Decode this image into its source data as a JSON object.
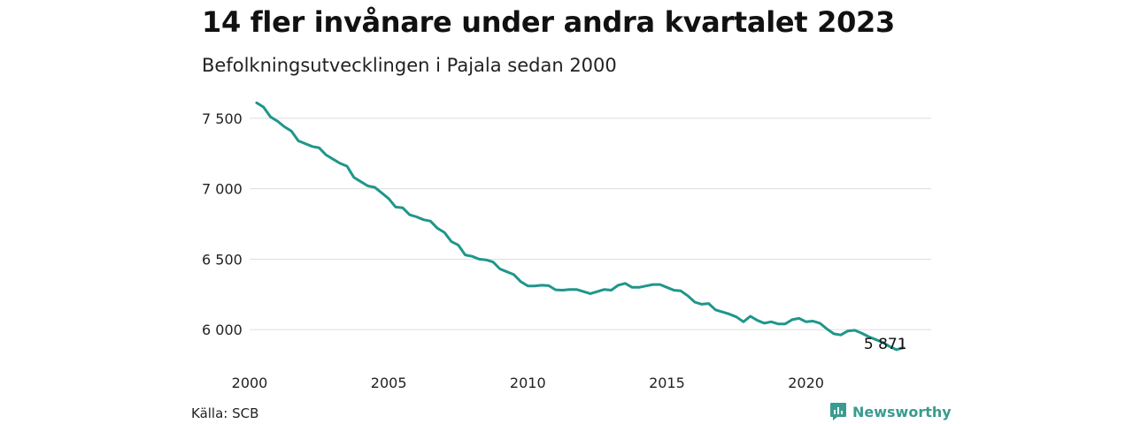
{
  "header": {
    "title": "14 fler invånare under andra kvartalet 2023",
    "subtitle": "Befolkningsutvecklingen i Pajala sedan 2000"
  },
  "footer": {
    "source": "Källa: SCB",
    "brand": "Newsworthy",
    "brand_color": "#3a9b90"
  },
  "chart_data": {
    "type": "line",
    "title": "14 fler invånare under andra kvartalet 2023",
    "subtitle": "Befolkningsutvecklingen i Pajala sedan 2000",
    "xlabel": "",
    "ylabel": "",
    "xlim": [
      2000,
      2024.5
    ],
    "ylim": [
      5800,
      7650
    ],
    "x_ticks": [
      2000,
      2005,
      2010,
      2015,
      2020
    ],
    "x_tick_labels": [
      "2000",
      "2005",
      "2010",
      "2015",
      "2020"
    ],
    "y_ticks": [
      6000,
      6500,
      7000,
      7500
    ],
    "y_tick_labels": [
      "6 000",
      "6 500",
      "7 000",
      "7 500"
    ],
    "grid": "horizontal",
    "line_color": "#1f968b",
    "annotation": {
      "x": 2023.5,
      "y": 5871,
      "label": "5 871"
    },
    "series": [
      {
        "x": [
          2000.25,
          2000.5,
          2000.75,
          2001.0,
          2001.25,
          2001.5,
          2001.75,
          2002.0,
          2002.25,
          2002.5,
          2002.75,
          2003.0,
          2003.25,
          2003.5,
          2003.75,
          2004.0,
          2004.25,
          2004.5,
          2004.75,
          2005.0,
          2005.25,
          2005.5,
          2005.75,
          2006.0,
          2006.25,
          2006.5,
          2006.75,
          2007.0,
          2007.25,
          2007.5,
          2007.75,
          2008.0,
          2008.25,
          2008.5,
          2008.75,
          2009.0,
          2009.25,
          2009.5,
          2009.75,
          2010.0,
          2010.25,
          2010.5,
          2010.75,
          2011.0,
          2011.25,
          2011.5,
          2011.75,
          2012.0,
          2012.25,
          2012.5,
          2012.75,
          2013.0,
          2013.25,
          2013.5,
          2013.75,
          2014.0,
          2014.25,
          2014.5,
          2014.75,
          2015.0,
          2015.25,
          2015.5,
          2015.75,
          2016.0,
          2016.25,
          2016.5,
          2016.75,
          2017.0,
          2017.25,
          2017.5,
          2017.75,
          2018.0,
          2018.25,
          2018.5,
          2018.75,
          2019.0,
          2019.25,
          2019.5,
          2019.75,
          2020.0,
          2020.25,
          2020.5,
          2020.75,
          2021.0,
          2021.25,
          2021.5,
          2021.75,
          2022.0,
          2022.25,
          2022.5,
          2022.75,
          2023.0,
          2023.25,
          2023.5
        ],
        "values": [
          7610,
          7580,
          7510,
          7480,
          7440,
          7410,
          7340,
          7320,
          7300,
          7290,
          7240,
          7210,
          7180,
          7160,
          7080,
          7050,
          7020,
          7010,
          6970,
          6930,
          6870,
          6865,
          6815,
          6800,
          6780,
          6770,
          6720,
          6690,
          6625,
          6600,
          6530,
          6520,
          6500,
          6495,
          6480,
          6430,
          6410,
          6390,
          6340,
          6310,
          6310,
          6315,
          6312,
          6282,
          6280,
          6285,
          6285,
          6270,
          6255,
          6270,
          6285,
          6280,
          6315,
          6328,
          6300,
          6300,
          6310,
          6320,
          6320,
          6300,
          6280,
          6275,
          6240,
          6195,
          6180,
          6185,
          6140,
          6125,
          6110,
          6090,
          6055,
          6095,
          6065,
          6045,
          6055,
          6040,
          6040,
          6070,
          6080,
          6055,
          6060,
          6045,
          6005,
          5970,
          5962,
          5990,
          5995,
          5975,
          5950,
          5930,
          5910,
          5880,
          5857,
          5871
        ]
      }
    ]
  }
}
